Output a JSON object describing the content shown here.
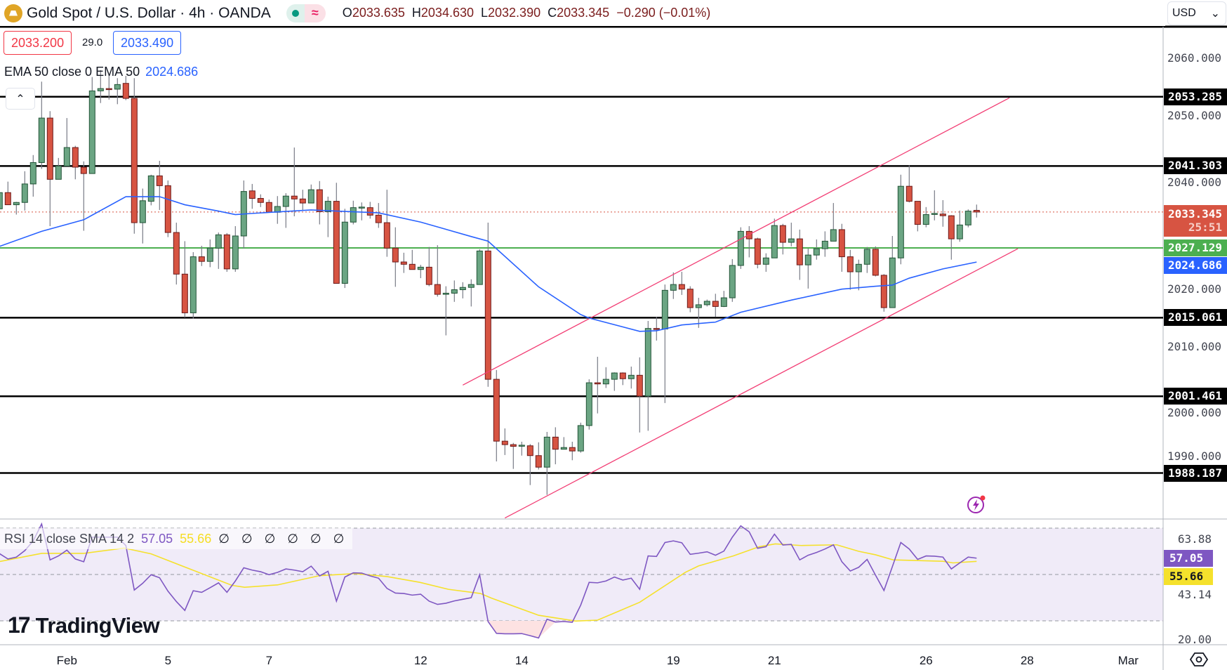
{
  "header": {
    "symbol_title": "Gold Spot / U.S. Dollar · 4h · OANDA",
    "market_status_icon": "market-open-dot",
    "data_delay_icon": "approx-icon",
    "data_delay_glyph": "≈",
    "ohlc": {
      "o_label": "O",
      "o": "2033.635",
      "h_label": "H",
      "h": "2034.630",
      "l_label": "L",
      "l": "2032.390",
      "c_label": "C",
      "c": "2033.345",
      "change": "−0.290 (−0.01%)"
    }
  },
  "trade": {
    "sell": "2033.200",
    "spread": "29.0",
    "buy": "2033.490"
  },
  "ema_legend": {
    "label": "EMA 50 close 0 EMA 50",
    "value": "2024.686"
  },
  "collapse_glyph": "⌃",
  "currency": {
    "selected": "USD",
    "chevron": "⌄"
  },
  "colors": {
    "up": "#6ba583",
    "up_border": "#225437",
    "down": "#d75442",
    "down_border": "#6b1a1a",
    "wick": "#787b86",
    "ema": "#2962ff",
    "support_green": "#4caf50",
    "channel": "#f23d74",
    "rsi": "#7e57c2",
    "rsi_sma": "#f5e12c",
    "rsi_band": "#f0ebf8"
  },
  "price_axis": {
    "ticks": [
      "2060.000",
      "2050.000",
      "2040.000",
      "2030.000",
      "2020.000",
      "2010.000",
      "2000.000",
      "1990.000"
    ],
    "tick_values": [
      2060,
      2050,
      2040,
      2030,
      2020,
      2010,
      2000,
      1990
    ],
    "levels": [
      {
        "value": 2053.285,
        "label": "2053.285"
      },
      {
        "value": 2041.303,
        "label": "2041.303"
      },
      {
        "value": 2015.061,
        "label": "2015.061"
      },
      {
        "value": 2001.461,
        "label": "2001.461"
      },
      {
        "value": 1988.187,
        "label": "1988.187"
      }
    ],
    "green_level": {
      "value": 2027.129,
      "label": "2027.129"
    },
    "last_price": {
      "label": "2033.345",
      "countdown": "25:51"
    },
    "ema_value": "2024.686"
  },
  "chart_data": {
    "type": "candlestick",
    "title": "Gold Spot / U.S. Dollar · 4h · OANDA",
    "y_range": [
      1980,
      2066
    ],
    "candles_ohlc": [
      [
        2033.9,
        2037.2,
        2033.6,
        2036.7
      ],
      [
        2036.7,
        2038.6,
        2034.6,
        2034.6
      ],
      [
        2034.6,
        2035.1,
        2032.9,
        2035.0
      ],
      [
        2035.0,
        2040.4,
        2033.6,
        2038.2
      ],
      [
        2038.2,
        2043.2,
        2036.0,
        2041.9
      ],
      [
        2041.9,
        2055.9,
        2040.8,
        2049.6
      ],
      [
        2049.6,
        2050.8,
        2030.9,
        2039.0
      ],
      [
        2039.0,
        2042.7,
        2039.0,
        2041.3
      ],
      [
        2041.3,
        2049.6,
        2041.3,
        2044.5
      ],
      [
        2044.5,
        2044.8,
        2039.0,
        2041.1
      ],
      [
        2041.1,
        2042.1,
        2030.1,
        2040.0
      ],
      [
        2040.0,
        2056.7,
        2040.0,
        2054.3
      ],
      [
        2054.3,
        2057.9,
        2052.2,
        2054.7
      ],
      [
        2054.7,
        2057.1,
        2052.8,
        2054.6
      ],
      [
        2054.6,
        2056.5,
        2052.0,
        2055.4
      ],
      [
        2055.6,
        2056.9,
        2052.7,
        2053.0
      ],
      [
        2053.0,
        2056.5,
        2029.6,
        2031.5
      ],
      [
        2031.5,
        2037.4,
        2027.9,
        2035.3
      ],
      [
        2035.2,
        2039.8,
        2034.5,
        2039.6
      ],
      [
        2039.6,
        2042.2,
        2033.7,
        2037.9
      ],
      [
        2037.9,
        2038.8,
        2029.0,
        2029.8
      ],
      [
        2029.8,
        2031.5,
        2020.8,
        2022.6
      ],
      [
        2022.6,
        2028.3,
        2015.1,
        2015.9
      ],
      [
        2015.9,
        2026.4,
        2014.9,
        2025.6
      ],
      [
        2025.6,
        2027.5,
        2024.0,
        2024.8
      ],
      [
        2024.8,
        2028.6,
        2023.8,
        2027.1
      ],
      [
        2027.1,
        2029.8,
        2023.5,
        2029.4
      ],
      [
        2029.4,
        2029.7,
        2023.0,
        2023.5
      ],
      [
        2023.5,
        2030.9,
        2023.0,
        2029.2
      ],
      [
        2029.2,
        2038.8,
        2027.0,
        2036.9
      ],
      [
        2037.0,
        2038.2,
        2033.9,
        2035.7
      ],
      [
        2035.7,
        2036.4,
        2034.2,
        2035.0
      ],
      [
        2035.0,
        2035.5,
        2033.3,
        2033.3
      ],
      [
        2033.3,
        2036.1,
        2031.3,
        2034.3
      ],
      [
        2034.3,
        2036.6,
        2030.6,
        2036.1
      ],
      [
        2036.1,
        2044.5,
        2032.6,
        2035.6
      ],
      [
        2035.6,
        2037.2,
        2033.7,
        2034.9
      ],
      [
        2034.9,
        2038.1,
        2034.9,
        2037.2
      ],
      [
        2037.2,
        2038.7,
        2031.2,
        2033.4
      ],
      [
        2033.4,
        2036.0,
        2029.0,
        2035.2
      ],
      [
        2035.2,
        2038.4,
        2021.0,
        2021.0
      ],
      [
        2021.0,
        2033.9,
        2020.2,
        2031.6
      ],
      [
        2031.6,
        2035.3,
        2031.2,
        2034.1
      ],
      [
        2034.1,
        2035.0,
        2031.9,
        2034.2
      ],
      [
        2034.1,
        2035.1,
        2032.2,
        2032.8
      ],
      [
        2032.8,
        2034.9,
        2030.6,
        2031.5
      ],
      [
        2031.5,
        2037.2,
        2025.6,
        2027.1
      ],
      [
        2027.1,
        2030.7,
        2020.4,
        2024.7
      ],
      [
        2024.7,
        2026.3,
        2022.8,
        2024.3
      ],
      [
        2024.3,
        2026.8,
        2023.4,
        2023.4
      ],
      [
        2023.4,
        2024.2,
        2021.9,
        2023.8
      ],
      [
        2023.8,
        2027.3,
        2020.5,
        2020.8
      ],
      [
        2020.8,
        2027.6,
        2018.7,
        2019.1
      ],
      [
        2019.1,
        2020.5,
        2012.0,
        2019.3
      ],
      [
        2019.3,
        2021.5,
        2017.8,
        2019.9
      ],
      [
        2019.9,
        2021.2,
        2018.4,
        2020.3
      ],
      [
        2020.3,
        2021.7,
        2017.0,
        2020.8
      ],
      [
        2020.8,
        2026.9,
        2020.8,
        2026.6
      ],
      [
        2026.6,
        2031.5,
        2003.1,
        2004.4
      ],
      [
        2004.4,
        2006.0,
        1990.2,
        1993.7
      ],
      [
        1993.7,
        1995.9,
        1991.3,
        1993.1
      ],
      [
        1993.1,
        1993.4,
        1988.9,
        1992.8
      ],
      [
        1992.9,
        1993.6,
        1991.2,
        1993.0
      ],
      [
        1992.9,
        1993.2,
        1986.1,
        1991.2
      ],
      [
        1991.2,
        1993.5,
        1988.8,
        1989.2
      ],
      [
        1989.2,
        1995.3,
        1984.4,
        1994.4
      ],
      [
        1994.4,
        1996.1,
        1989.7,
        1992.3
      ],
      [
        1992.3,
        1994.4,
        1992.3,
        1992.6
      ],
      [
        1992.6,
        1993.6,
        1990.4,
        1992.0
      ],
      [
        1992.0,
        1996.9,
        1991.7,
        1996.4
      ],
      [
        1996.4,
        2004.4,
        1995.7,
        2003.8
      ],
      [
        2003.8,
        2008.3,
        1998.5,
        2003.6
      ],
      [
        2003.6,
        2006.5,
        2002.9,
        2004.4
      ],
      [
        2004.4,
        2005.6,
        2002.4,
        2005.5
      ],
      [
        2005.5,
        2005.6,
        2003.4,
        2004.5
      ],
      [
        2004.5,
        2006.6,
        2002.8,
        2005.1
      ],
      [
        2005.1,
        2008.2,
        1995.2,
        2001.5
      ],
      [
        2001.5,
        2014.5,
        1995.5,
        2013.2
      ],
      [
        2013.2,
        2015.2,
        2011.1,
        2013.1
      ],
      [
        2013.1,
        2020.8,
        2000.3,
        2019.8
      ],
      [
        2019.8,
        2022.9,
        2018.3,
        2020.8
      ],
      [
        2020.8,
        2023.0,
        2019.0,
        2020.0
      ],
      [
        2020.0,
        2020.5,
        2016.0,
        2016.8
      ],
      [
        2016.8,
        2018.5,
        2013.3,
        2017.3
      ],
      [
        2017.3,
        2018.2,
        2017.0,
        2017.9
      ],
      [
        2017.9,
        2019.2,
        2015.2,
        2017.0
      ],
      [
        2017.0,
        2019.7,
        2016.9,
        2018.5
      ],
      [
        2018.5,
        2025.2,
        2017.8,
        2024.1
      ],
      [
        2024.1,
        2030.7,
        2023.5,
        2030.0
      ],
      [
        2030.0,
        2030.9,
        2025.5,
        2028.7
      ],
      [
        2028.7,
        2028.9,
        2023.6,
        2024.3
      ],
      [
        2024.3,
        2026.2,
        2023.0,
        2025.4
      ],
      [
        2025.4,
        2032.2,
        2025.4,
        2031.0
      ],
      [
        2031.0,
        2031.3,
        2026.0,
        2028.1
      ],
      [
        2028.1,
        2031.5,
        2027.4,
        2028.7
      ],
      [
        2028.7,
        2030.3,
        2021.6,
        2024.2
      ],
      [
        2024.2,
        2027.0,
        2020.1,
        2025.9
      ],
      [
        2025.9,
        2028.6,
        2025.1,
        2027.0
      ],
      [
        2027.0,
        2030.0,
        2025.6,
        2028.3
      ],
      [
        2028.3,
        2034.9,
        2028.3,
        2030.3
      ],
      [
        2030.3,
        2031.3,
        2023.0,
        2025.6
      ],
      [
        2025.6,
        2026.8,
        2019.9,
        2023.0
      ],
      [
        2023.0,
        2025.1,
        2019.8,
        2024.3
      ],
      [
        2024.3,
        2027.3,
        2022.8,
        2026.9
      ],
      [
        2026.9,
        2027.4,
        2022.2,
        2022.4
      ],
      [
        2022.4,
        2022.6,
        2016.1,
        2016.8
      ],
      [
        2016.8,
        2029.2,
        2016.8,
        2025.4
      ],
      [
        2025.4,
        2039.8,
        2024.3,
        2037.8
      ],
      [
        2037.8,
        2041.4,
        2035.0,
        2035.2
      ],
      [
        2035.2,
        2035.2,
        2030.0,
        2031.2
      ],
      [
        2031.2,
        2034.2,
        2030.7,
        2032.9
      ],
      [
        2033.0,
        2037.1,
        2031.9,
        2033.1
      ],
      [
        2033.0,
        2035.4,
        2030.8,
        2032.7
      ],
      [
        2032.7,
        2032.8,
        2025.1,
        2028.7
      ],
      [
        2028.7,
        2033.6,
        2028.2,
        2031.1
      ],
      [
        2031.1,
        2033.8,
        2030.7,
        2033.5
      ],
      [
        2033.635,
        2034.63,
        2032.39,
        2033.345
      ]
    ],
    "ema50_by_bar": [
      [
        0,
        2027.4
      ],
      [
        5,
        2030.0
      ],
      [
        10,
        2032.0
      ],
      [
        15,
        2036.0
      ],
      [
        19,
        2036.0
      ],
      [
        22,
        2034.6
      ],
      [
        26,
        2033.5
      ],
      [
        28,
        2032.9
      ],
      [
        30,
        2033.1
      ],
      [
        37,
        2033.7
      ],
      [
        45,
        2033.2
      ],
      [
        50,
        2031.6
      ],
      [
        56,
        2029.1
      ],
      [
        58,
        2028.3
      ],
      [
        64,
        2020.4
      ],
      [
        69,
        2015.6
      ],
      [
        70,
        2015.0
      ],
      [
        76,
        2012.7
      ],
      [
        78,
        2012.8
      ],
      [
        81,
        2013.8
      ],
      [
        85,
        2014.3
      ],
      [
        88,
        2016.0
      ],
      [
        94,
        2018.1
      ],
      [
        100,
        2020.0
      ],
      [
        104,
        2020.5
      ],
      [
        106,
        2020.7
      ],
      [
        108,
        2021.9
      ],
      [
        112,
        2023.5
      ],
      [
        116,
        2024.686
      ]
    ],
    "channel_upper_by_bar": [
      [
        55,
        2003.4
      ],
      [
        119.9,
        2053.1
      ]
    ],
    "channel_lower_by_bar": [
      [
        60,
        1980.4
      ],
      [
        120.9,
        2027.0
      ]
    ],
    "last_close": 2033.345
  },
  "rsi": {
    "legend": "RSI 14 close SMA 14 2",
    "value": "57.05",
    "sma_value": "55.66",
    "placeholders": "∅ ∅ ∅ ∅ ∅ ∅",
    "axis_labels": [
      "63.88",
      "43.14",
      "20.00"
    ],
    "axis_values": [
      63.88,
      43.14,
      20.0
    ],
    "bands": [
      70,
      50,
      30
    ],
    "values": [
      59.0,
      56.7,
      57.5,
      60.3,
      64.5,
      71.8,
      56.3,
      58.0,
      60.5,
      56.7,
      55.5,
      66.1,
      66.1,
      66.1,
      66.1,
      62.5,
      43.3,
      46.2,
      49.9,
      48.6,
      42.8,
      38.3,
      34.5,
      43.0,
      42.3,
      44.3,
      46.4,
      42.3,
      47.2,
      52.9,
      51.9,
      51.2,
      49.9,
      50.9,
      52.4,
      51.9,
      51.2,
      53.6,
      49.4,
      51.4,
      38.5,
      48.9,
      50.7,
      50.6,
      49.4,
      48.4,
      44.0,
      42.0,
      41.8,
      41.1,
      41.5,
      38.5,
      37.1,
      37.6,
      38.6,
      39.3,
      40.0,
      49.9,
      29.7,
      24.6,
      24.4,
      24.4,
      24.5,
      23.6,
      22.6,
      30.7,
      29.5,
      29.7,
      29.4,
      36.8,
      46.6,
      46.4,
      47.2,
      48.9,
      47.6,
      48.4,
      43.6,
      58.0,
      57.8,
      63.8,
      64.5,
      63.7,
      58.7,
      59.2,
      59.8,
      58.3,
      60.1,
      66.1,
      71.0,
      68.4,
      61.3,
      62.0,
      67.4,
      62.7,
      63.0,
      56.3,
      58.3,
      59.5,
      61.0,
      62.8,
      55.5,
      51.5,
      53.1,
      56.5,
      49.7,
      43.1,
      53.4,
      63.8,
      61.0,
      56.5,
      58.0,
      57.9,
      57.5,
      52.4,
      55.0,
      57.5,
      57.05
    ],
    "sma_by_bar": [
      [
        0,
        55.6
      ],
      [
        5,
        59.1
      ],
      [
        10,
        59.1
      ],
      [
        14.8,
        61.4
      ],
      [
        18,
        58.9
      ],
      [
        22.3,
        52.8
      ],
      [
        27.6,
        45.3
      ],
      [
        29.1,
        44.5
      ],
      [
        33,
        45.5
      ],
      [
        38,
        49.5
      ],
      [
        42.2,
        50.4
      ],
      [
        46,
        49.1
      ],
      [
        49.9,
        46.6
      ],
      [
        53.3,
        43.6
      ],
      [
        57.1,
        41.8
      ],
      [
        58.4,
        39.8
      ],
      [
        64,
        32.4
      ],
      [
        68.4,
        29.9
      ],
      [
        71,
        30.3
      ],
      [
        76,
        38.0
      ],
      [
        81.4,
        50.9
      ],
      [
        83,
        53.7
      ],
      [
        87.1,
        58.0
      ],
      [
        90.2,
        62.0
      ],
      [
        92.1,
        63.2
      ],
      [
        95.2,
        62.5
      ],
      [
        99.4,
        62.8
      ],
      [
        102,
        60.0
      ],
      [
        104,
        58.5
      ],
      [
        106.1,
        56.3
      ],
      [
        112,
        55.7
      ],
      [
        113.2,
        55.0
      ],
      [
        116,
        55.66
      ]
    ]
  },
  "time_axis": {
    "labels": [
      "Feb",
      "5",
      "7",
      "12",
      "14",
      "19",
      "21",
      "26",
      "28",
      "Mar"
    ]
  },
  "branding": {
    "logo_mark": "17",
    "logo_text": "TradingView"
  },
  "icons": {
    "alert": "lightning-alert-icon",
    "settings": "chart-settings-icon"
  }
}
